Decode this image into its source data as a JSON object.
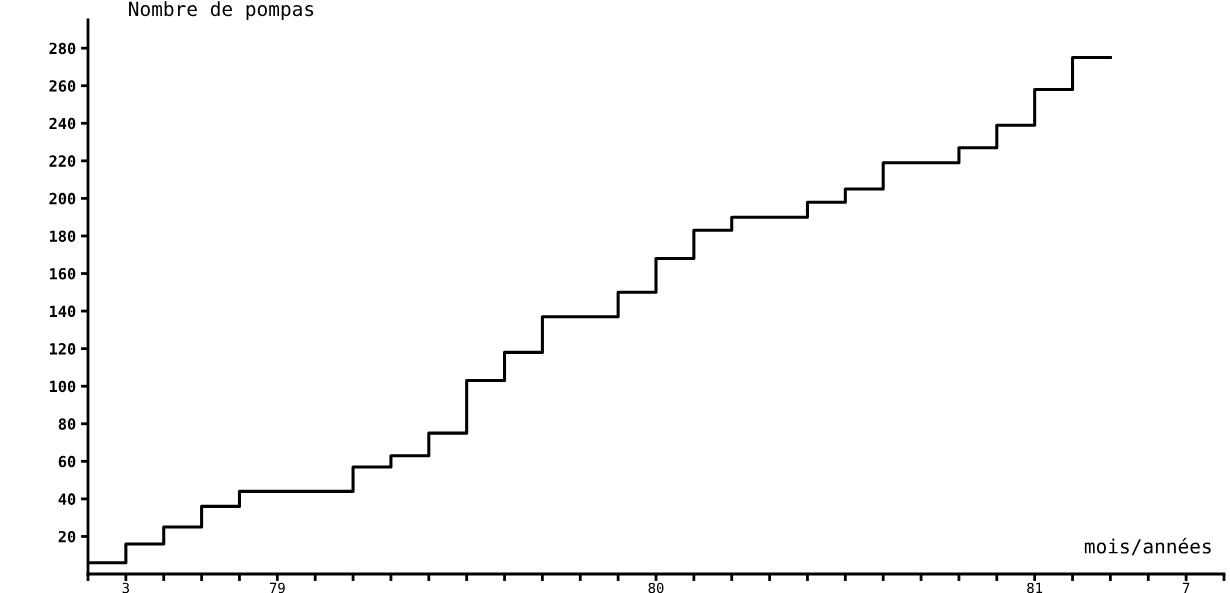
{
  "chart_data": {
    "type": "step",
    "ylabel": "Nombre de pompas",
    "xlabel": "mois/années",
    "categories": [
      null,
      "3",
      null,
      null,
      null,
      "79",
      null,
      null,
      null,
      null,
      null,
      null,
      null,
      null,
      null,
      "80",
      null,
      null,
      null,
      null,
      null,
      null,
      null,
      null,
      null,
      "81",
      null,
      null,
      null,
      "7",
      null
    ],
    "series": [
      {
        "color": "#000000",
        "values": [
          6,
          16,
          25,
          36,
          44,
          44,
          44,
          57,
          63,
          75,
          103,
          118,
          137,
          137,
          150,
          168,
          183,
          190,
          190,
          198,
          205,
          219,
          219,
          227,
          239,
          258,
          275,
          275,
          null,
          null,
          null
        ]
      }
    ],
    "ylim": [
      0,
      295
    ],
    "yticks": [
      20,
      40,
      60,
      80,
      100,
      120,
      140,
      160,
      180,
      200,
      220,
      240,
      260,
      280
    ],
    "grid": false,
    "legend": false,
    "marker": "none",
    "line_style": "solid"
  }
}
